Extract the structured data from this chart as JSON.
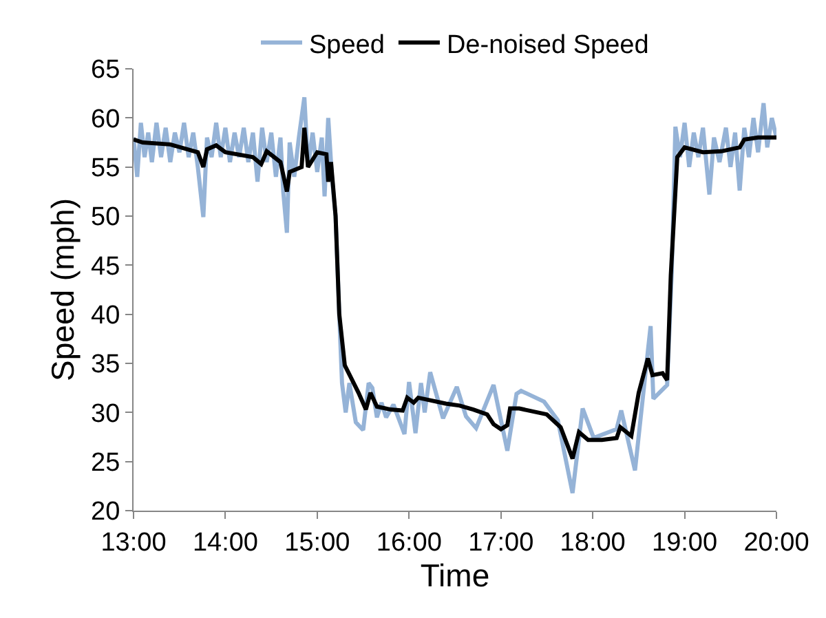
{
  "chart_data": {
    "type": "line",
    "xlabel": "Time",
    "ylabel": "Speed (mph)",
    "xlim": [
      13,
      20
    ],
    "xticks": [
      {
        "value": 13,
        "label": "13:00"
      },
      {
        "value": 14,
        "label": "14:00"
      },
      {
        "value": 15,
        "label": "15:00"
      },
      {
        "value": 16,
        "label": "16:00"
      },
      {
        "value": 17,
        "label": "17:00"
      },
      {
        "value": 18,
        "label": "18:00"
      },
      {
        "value": 19,
        "label": "19:00"
      },
      {
        "value": 20,
        "label": "20:00"
      }
    ],
    "ylim": [
      20,
      65
    ],
    "yticks": [
      20,
      25,
      30,
      35,
      40,
      45,
      50,
      55,
      60,
      65
    ],
    "legend": "top",
    "marker": "none",
    "line_style": "solid",
    "series": [
      {
        "name": "Speed",
        "color": "#95b3d7",
        "x": [
          13.0,
          13.04,
          13.08,
          13.12,
          13.16,
          13.2,
          13.25,
          13.3,
          13.35,
          13.4,
          13.45,
          13.5,
          13.55,
          13.6,
          13.65,
          13.7,
          13.76,
          13.8,
          13.85,
          13.9,
          13.95,
          14.0,
          14.05,
          14.1,
          14.15,
          14.2,
          14.25,
          14.3,
          14.35,
          14.4,
          14.45,
          14.5,
          14.55,
          14.6,
          14.63,
          14.67,
          14.7,
          14.75,
          14.8,
          14.86,
          14.9,
          14.95,
          15.0,
          15.05,
          15.08,
          15.12,
          15.16,
          15.2,
          15.24,
          15.27,
          15.31,
          15.35,
          15.42,
          15.5,
          15.56,
          15.6,
          15.65,
          15.7,
          15.75,
          15.83,
          15.95,
          16.0,
          16.07,
          16.13,
          16.17,
          16.23,
          16.37,
          16.52,
          16.62,
          16.73,
          16.92,
          17.07,
          17.17,
          17.22,
          17.47,
          17.62,
          17.78,
          17.89,
          18.01,
          18.26,
          18.31,
          18.46,
          18.56,
          18.63,
          18.66,
          18.81,
          18.86,
          18.9,
          18.95,
          19.0,
          19.05,
          19.1,
          19.15,
          19.2,
          19.27,
          19.32,
          19.38,
          19.45,
          19.5,
          19.55,
          19.6,
          19.65,
          19.7,
          19.75,
          19.8,
          19.86,
          19.9,
          19.95,
          20.0
        ],
        "values": [
          58,
          54,
          59.5,
          56,
          58.5,
          55.5,
          59.5,
          56,
          59,
          55.5,
          58.5,
          56.5,
          59.5,
          56,
          58.5,
          55,
          49.9,
          58,
          56,
          59.5,
          56,
          59,
          55.5,
          58.5,
          56,
          59,
          55.5,
          58.5,
          53.5,
          59,
          55.5,
          58.5,
          54,
          58,
          52.5,
          48.3,
          57.5,
          54,
          58,
          62.1,
          55,
          58.5,
          54.5,
          58,
          52,
          60,
          54,
          50,
          40,
          33,
          30,
          33,
          29,
          28.2,
          33,
          32.5,
          29.5,
          31,
          29.5,
          30.8,
          27.8,
          33.1,
          27.9,
          33,
          30,
          34.1,
          29.4,
          32.6,
          29.6,
          28.4,
          32.8,
          26.1,
          31.9,
          32.2,
          31.1,
          29.2,
          21.8,
          30.4,
          27.4,
          28.3,
          30.2,
          24.1,
          32.8,
          38.8,
          31.4,
          32.8,
          44.3,
          59.1,
          56,
          59.5,
          55,
          58.5,
          56,
          59,
          52.2,
          58,
          55.5,
          59,
          55,
          58.5,
          52.6,
          59,
          56,
          60,
          56.5,
          61.5,
          57,
          60,
          58
        ]
      },
      {
        "name": "De-noised Speed",
        "color": "#000000",
        "x": [
          13.0,
          13.1,
          13.4,
          13.7,
          13.76,
          13.8,
          13.9,
          14.0,
          14.3,
          14.39,
          14.45,
          14.6,
          14.67,
          14.7,
          14.83,
          14.86,
          14.9,
          15.0,
          15.1,
          15.12,
          15.15,
          15.2,
          15.24,
          15.3,
          15.45,
          15.53,
          15.58,
          15.65,
          15.8,
          15.93,
          15.98,
          16.05,
          16.1,
          16.4,
          16.55,
          16.7,
          16.85,
          16.92,
          17.0,
          17.07,
          17.1,
          17.2,
          17.5,
          17.65,
          17.78,
          17.85,
          17.95,
          18.1,
          18.26,
          18.3,
          18.42,
          18.5,
          18.6,
          18.65,
          18.76,
          18.81,
          18.85,
          18.92,
          19.0,
          19.2,
          19.4,
          19.6,
          19.65,
          19.8,
          20.0
        ],
        "values": [
          57.8,
          57.5,
          57.3,
          56.5,
          55,
          56.8,
          57.2,
          56.5,
          56,
          55.3,
          56.6,
          55.5,
          52.5,
          54.5,
          55,
          59,
          55,
          56.5,
          56.3,
          53.5,
          55.5,
          50,
          40,
          34.8,
          32,
          30.3,
          32,
          30.6,
          30.3,
          30.2,
          31.5,
          31,
          31.5,
          30.9,
          30.7,
          30.3,
          29.8,
          28.8,
          28.3,
          28.7,
          30.4,
          30.4,
          29.8,
          28.5,
          25.3,
          28,
          27.2,
          27.2,
          27.4,
          28.5,
          27.6,
          32,
          35.5,
          33.8,
          34,
          33.3,
          44,
          56,
          57,
          56.5,
          56.6,
          57,
          57.8,
          58,
          58
        ]
      }
    ]
  }
}
